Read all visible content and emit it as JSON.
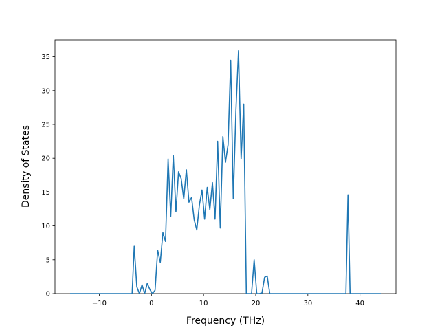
{
  "chart_data": {
    "type": "line",
    "title": "",
    "xlabel": "Frequency (THz)",
    "ylabel": "Density of States",
    "xlim": [
      -18.5,
      46.9
    ],
    "ylim": [
      0,
      37.5
    ],
    "xticks": [
      -10,
      0,
      10,
      20,
      30,
      40
    ],
    "xtick_labels": [
      "−10",
      "0",
      "10",
      "20",
      "30",
      "40"
    ],
    "yticks": [
      0,
      5,
      10,
      15,
      20,
      25,
      30,
      35
    ],
    "ytick_labels": [
      "0",
      "5",
      "10",
      "15",
      "20",
      "25",
      "30",
      "35"
    ],
    "grid": false,
    "line_color": "#1f77b4",
    "series": [
      {
        "x": [
          -15.6,
          -3.7,
          -3.3,
          -2.8,
          -2.3,
          -1.8,
          -1.3,
          -0.8,
          -0.3,
          0.2,
          0.7,
          1.2,
          1.7,
          2.2,
          2.7,
          3.2,
          3.7,
          4.2,
          4.7,
          5.2,
          5.7,
          6.2,
          6.7,
          7.2,
          7.7,
          8.2,
          8.7,
          9.2,
          9.7,
          10.2,
          10.7,
          11.2,
          11.7,
          12.2,
          12.7,
          13.2,
          13.7,
          14.2,
          14.7,
          15.2,
          15.7,
          16.2,
          16.7,
          17.2,
          17.7,
          18.2,
          18.7,
          19.2,
          19.7,
          20.2,
          20.7,
          21.2,
          21.7,
          22.2,
          22.7,
          23.2,
          37.3,
          37.7,
          38.1,
          44.0
        ],
        "y": [
          0,
          0,
          7.0,
          1.0,
          0,
          1.3,
          0,
          1.5,
          0.6,
          0,
          0.5,
          6.4,
          4.6,
          9.0,
          7.7,
          19.9,
          11.4,
          20.4,
          12.1,
          18.0,
          17.0,
          14.0,
          18.3,
          13.5,
          14.2,
          10.9,
          9.4,
          13.1,
          15.3,
          11.0,
          15.7,
          12.4,
          16.4,
          11.0,
          22.5,
          9.7,
          23.2,
          19.4,
          22.0,
          34.5,
          14.0,
          27.0,
          35.9,
          19.9,
          28.0,
          0,
          0,
          0,
          5.0,
          0,
          0,
          0.1,
          2.4,
          2.6,
          0,
          0,
          0,
          14.6,
          0,
          0
        ]
      }
    ]
  }
}
